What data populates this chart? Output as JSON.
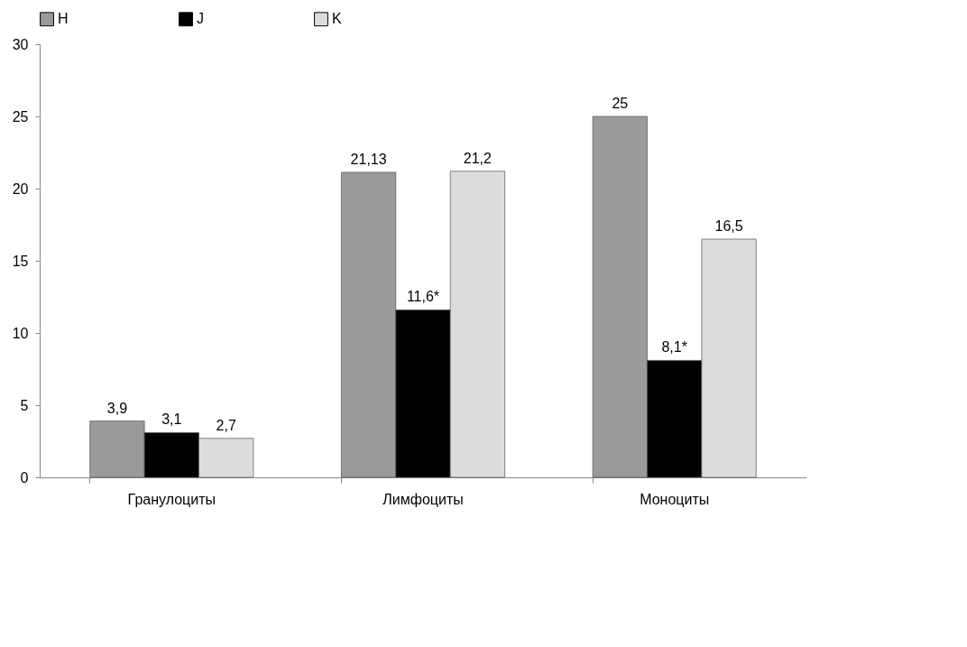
{
  "chart_data": {
    "type": "bar",
    "categories": [
      "Гранулоциты",
      "Лимфоциты",
      "Моноциты"
    ],
    "series": [
      {
        "name": "H",
        "color": "#9a9a9a",
        "values": [
          3.9,
          21.13,
          25
        ],
        "value_labels": [
          "3,9",
          "21,13",
          "25"
        ]
      },
      {
        "name": "J",
        "color": "#000000",
        "values": [
          3.1,
          11.6,
          8.1
        ],
        "value_labels": [
          "3,1",
          "11,6*",
          "8,1*"
        ]
      },
      {
        "name": "K",
        "color": "#dcdcdc",
        "values": [
          2.7,
          21.2,
          16.5
        ],
        "value_labels": [
          "2,7",
          "21,2",
          "16,5"
        ]
      }
    ],
    "ylim": [
      0,
      30
    ],
    "yticks": [
      0,
      5,
      10,
      15,
      20,
      25,
      30
    ],
    "legend": "top"
  }
}
